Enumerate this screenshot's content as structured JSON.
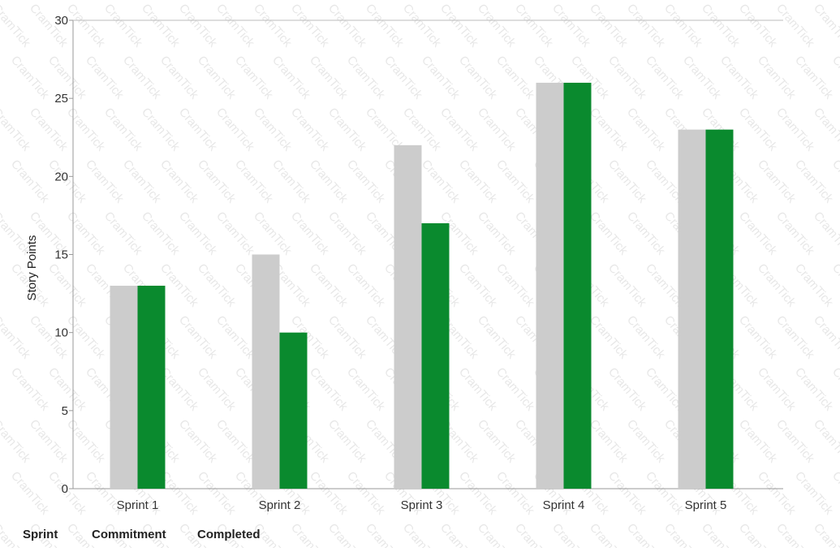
{
  "chart_data": {
    "type": "bar",
    "categories": [
      "Sprint 1",
      "Sprint 2",
      "Sprint 3",
      "Sprint 4",
      "Sprint 5"
    ],
    "series": [
      {
        "values": [
          13,
          15,
          22,
          26,
          23
        ],
        "color": "#cccccc"
      },
      {
        "values": [
          13,
          10,
          17,
          26,
          23
        ],
        "color": "#0a8a2e"
      }
    ],
    "xlabel": "",
    "ylabel": "Story Points",
    "ylim": [
      0,
      30
    ],
    "yticks": [
      0,
      5,
      10,
      15,
      20,
      25,
      30
    ],
    "grid": false,
    "legend": "none"
  },
  "table_header": {
    "sprint": "Sprint",
    "commitment": "Commitment",
    "completed": "Completed"
  },
  "watermark": {
    "text": "CramTick"
  }
}
